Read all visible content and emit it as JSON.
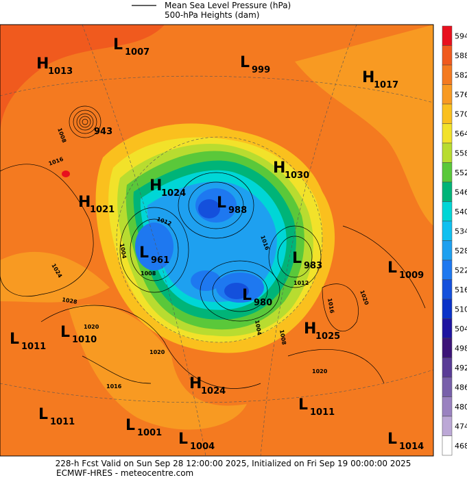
{
  "header": {
    "line1": "Mean Sea Level Pressure (hPa)",
    "line2": "500-hPa Heights (dam)"
  },
  "centers": [
    {
      "type": "L",
      "value": 1007
    },
    {
      "type": "H",
      "value": 1013
    },
    {
      "type": "L",
      "value": 999
    },
    {
      "type": "H",
      "value": 1017
    },
    {
      "type": "H",
      "value": 1030
    },
    {
      "type": "H",
      "value": 1024
    },
    {
      "type": "H",
      "value": 1021
    },
    {
      "type": "L",
      "value": 988
    },
    {
      "type": "L",
      "value": 961
    },
    {
      "type": "L",
      "value": 983
    },
    {
      "type": "L",
      "value": 1009
    },
    {
      "type": "L",
      "value": 980
    },
    {
      "type": "H",
      "value": 1025
    },
    {
      "type": "L",
      "value": 1011
    },
    {
      "type": "L",
      "value": 1010
    },
    {
      "type": "H",
      "value": 1024
    },
    {
      "type": "L",
      "value": 1011
    },
    {
      "type": "L",
      "value": 1011
    },
    {
      "type": "L",
      "value": 1001
    },
    {
      "type": "L",
      "value": 1004
    },
    {
      "type": "L",
      "value": 1014
    }
  ],
  "hurricane": {
    "value": 943
  },
  "isobar_labels": [
    1008,
    1016,
    1012,
    1004,
    1008,
    1024,
    1028,
    1020,
    1016,
    1012,
    1020,
    1016,
    1004,
    1008,
    1020,
    1016,
    1020
  ],
  "colorbar": [
    {
      "value": 594,
      "color": "#e8101e"
    },
    {
      "value": 588,
      "color": "#f05a1e"
    },
    {
      "value": 582,
      "color": "#f47a20"
    },
    {
      "value": 576,
      "color": "#f89a22"
    },
    {
      "value": 570,
      "color": "#fac01e"
    },
    {
      "value": 564,
      "color": "#f2e22a"
    },
    {
      "value": 558,
      "color": "#b8dc30"
    },
    {
      "value": 552,
      "color": "#5ac83a"
    },
    {
      "value": 546,
      "color": "#00b478"
    },
    {
      "value": 540,
      "color": "#00d6d6"
    },
    {
      "value": 534,
      "color": "#10c0f0"
    },
    {
      "value": 528,
      "color": "#1ea0f0"
    },
    {
      "value": 522,
      "color": "#1e78f0"
    },
    {
      "value": 516,
      "color": "#1450dc"
    },
    {
      "value": 510,
      "color": "#0a32c8"
    },
    {
      "value": 504,
      "color": "#1e14a0"
    },
    {
      "value": 498,
      "color": "#3c1478"
    },
    {
      "value": 492,
      "color": "#5a3c96"
    },
    {
      "value": 486,
      "color": "#7860aa"
    },
    {
      "value": 480,
      "color": "#9a82c0"
    },
    {
      "value": 474,
      "color": "#bca8d6"
    },
    {
      "value": 468,
      "color": "#ffffff"
    }
  ],
  "footer": {
    "line1": "228-h Fcst Valid on Sun Sep 28 12:00:00 2025, Initialized on Fri Sep 19 00:00:00 2025",
    "line2": "ECMWF-HRES - meteocentre.com"
  }
}
